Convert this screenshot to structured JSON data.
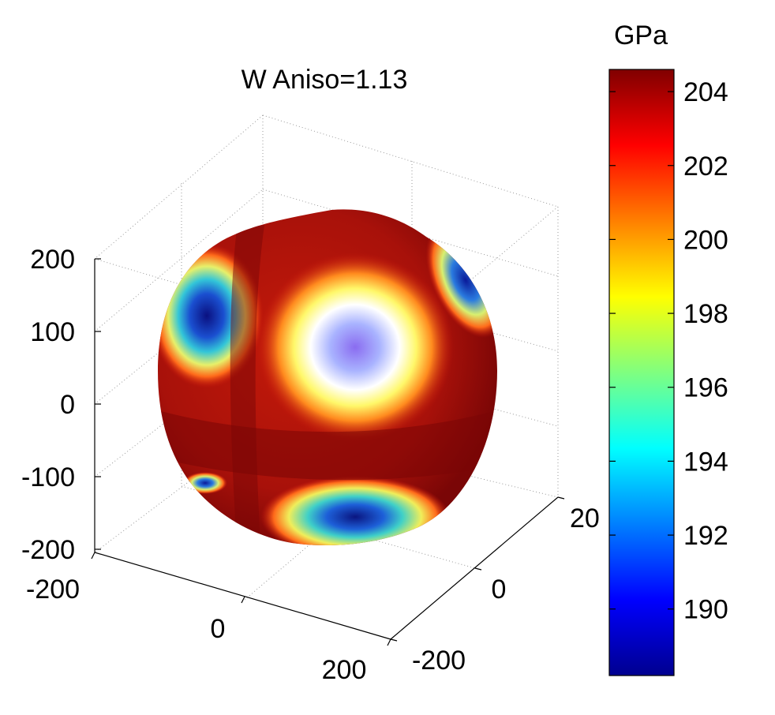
{
  "chart_data": {
    "type": "surface",
    "title": "W Aniso=1.13",
    "xlabel": "",
    "ylabel": "",
    "zlabel": "",
    "x_ticks": [
      "-200",
      "0",
      "200"
    ],
    "y_ticks": [
      "-200",
      "0",
      "20"
    ],
    "z_ticks": [
      "200",
      "100",
      "0",
      "-100",
      "-200"
    ],
    "xlim": [
      -200,
      200
    ],
    "ylim": [
      -200,
      200
    ],
    "zlim": [
      -200,
      200
    ],
    "grid": true,
    "colormap": "jet",
    "colorbar": {
      "unit_label": "GPa",
      "range": [
        188.2,
        204.6
      ],
      "ticks": [
        {
          "value": 204,
          "label": "204"
        },
        {
          "value": 202,
          "label": "202"
        },
        {
          "value": 200,
          "label": "200"
        },
        {
          "value": 198,
          "label": "198"
        },
        {
          "value": 196,
          "label": "196"
        },
        {
          "value": 194,
          "label": "194"
        },
        {
          "value": 192,
          "label": "192"
        },
        {
          "value": 190,
          "label": "190"
        }
      ],
      "colormap_stops": [
        "#00008f",
        "#0000ff",
        "#00ffff",
        "#ffff00",
        "#ff0000",
        "#800000"
      ]
    }
  }
}
